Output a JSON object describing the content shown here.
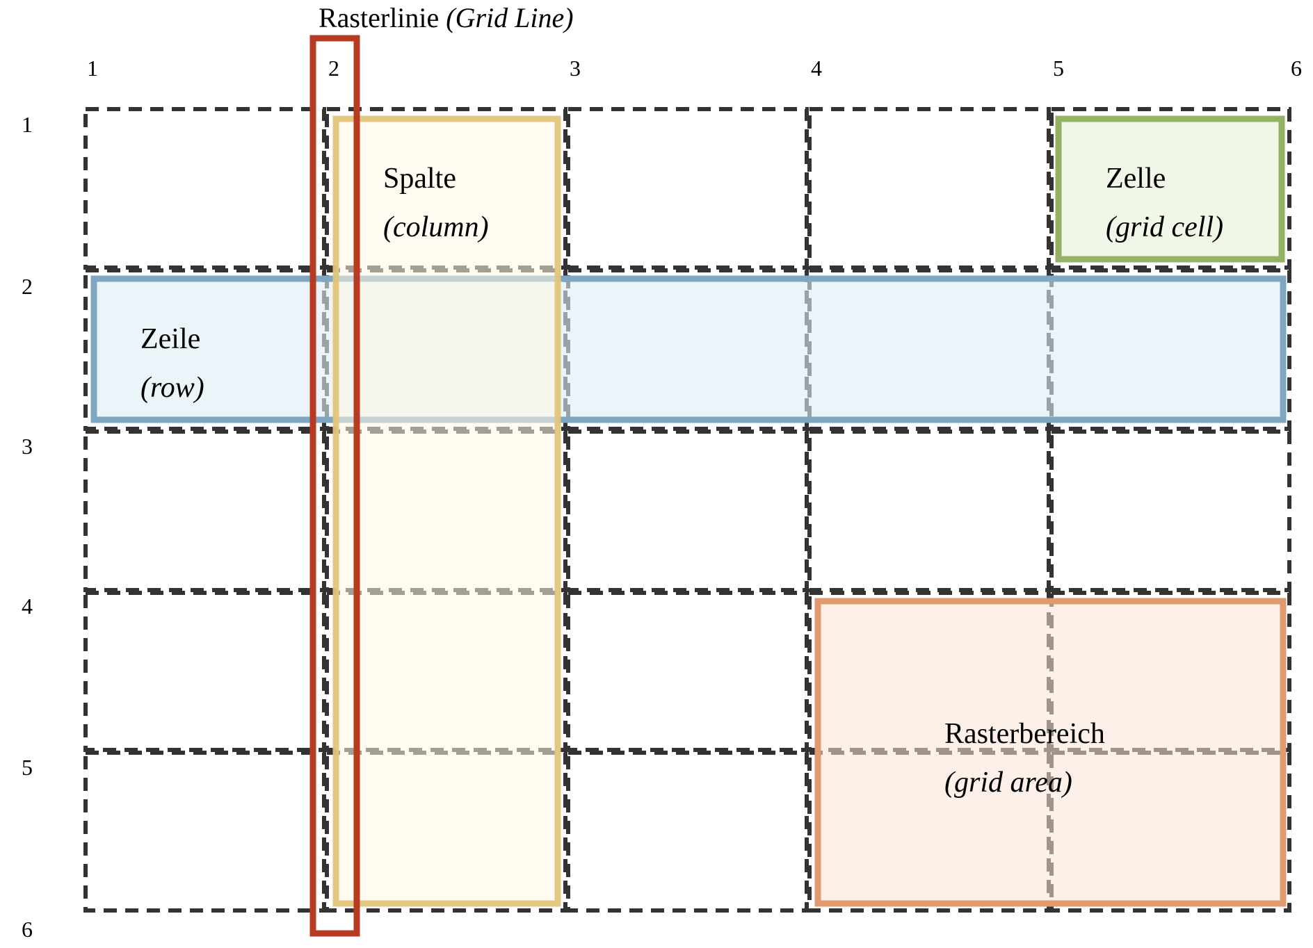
{
  "title": {
    "text": "Rasterlinie",
    "italic": "(Grid Line)"
  },
  "column_numbers": [
    "1",
    "2",
    "3",
    "4",
    "5",
    "6"
  ],
  "row_numbers": [
    "1",
    "2",
    "3",
    "4",
    "5",
    "6"
  ],
  "labels": {
    "column": {
      "text": "Spalte",
      "italic": "(column)"
    },
    "cell": {
      "text": "Zelle",
      "italic": "(grid cell)"
    },
    "row": {
      "text": "Zeile",
      "italic": "(row)"
    },
    "area": {
      "text": "Rasterbereich",
      "italic": "(grid area)"
    }
  },
  "colors": {
    "grid_line": "#333333",
    "highlight_line": "#B83A22",
    "column": "#E3C47A",
    "row": "#7FA6C2",
    "cell": "#94B266",
    "area": "#E09A70"
  }
}
